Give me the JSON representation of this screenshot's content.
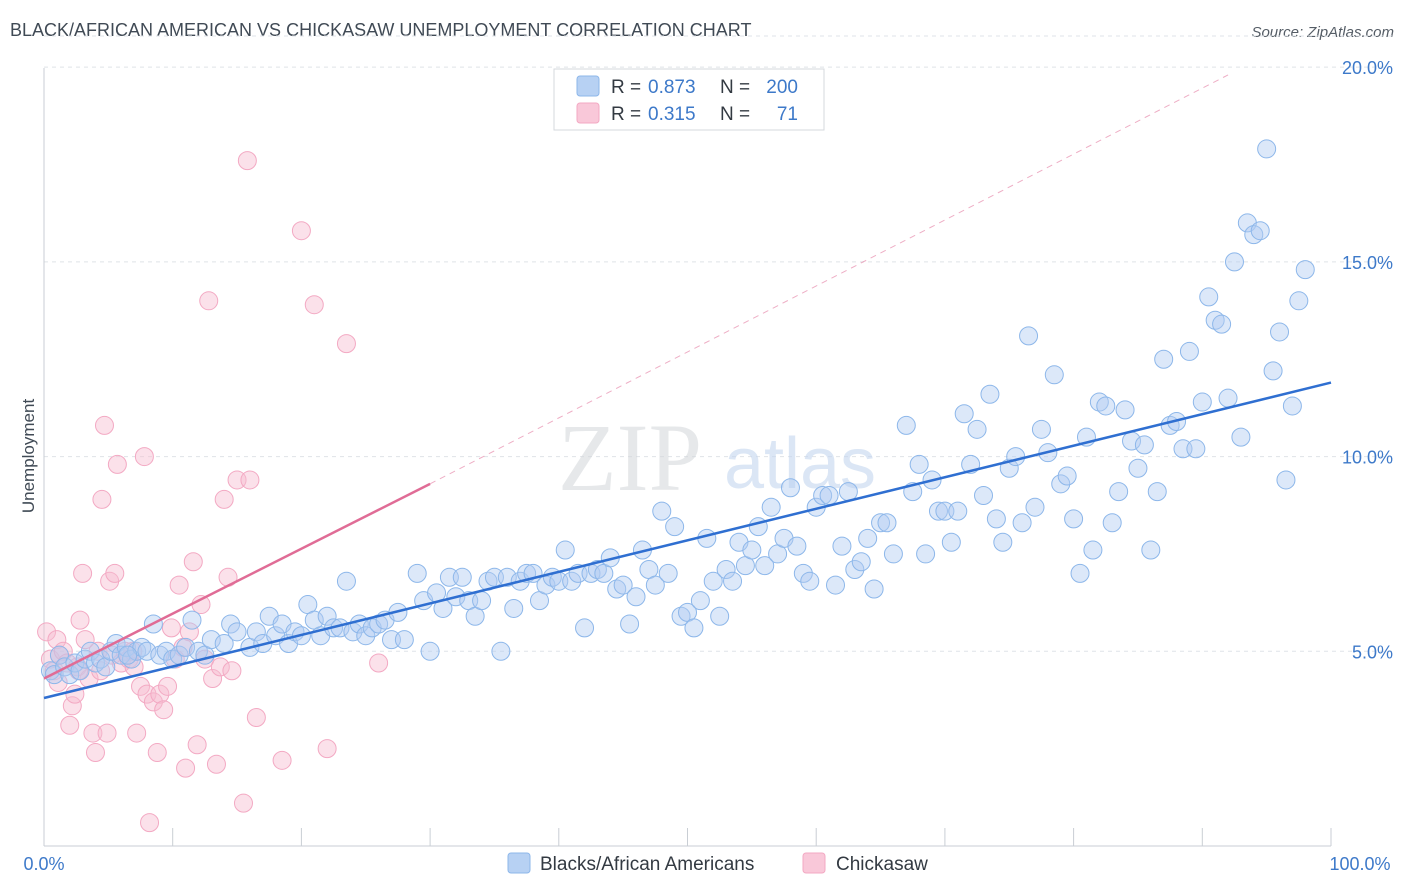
{
  "header": {
    "title": "BLACK/AFRICAN AMERICAN VS CHICKASAW UNEMPLOYMENT CORRELATION CHART",
    "source": "Source: ZipAtlas.com"
  },
  "colors": {
    "blue": "#8db7ea",
    "blue_line": "#2f6fd1",
    "pink": "#f3a9c3",
    "pink_line": "#e06c96",
    "axis_label": "#3d79c9",
    "grid": "#dfe3e8"
  },
  "watermark": {
    "zip": "ZIP",
    "atlas": "atlas"
  },
  "chart_data": {
    "type": "scatter",
    "title": "BLACK/AFRICAN AMERICAN VS CHICKASAW UNEMPLOYMENT CORRELATION CHART",
    "xlabel": "",
    "ylabel": "Unemployment",
    "xlim": [
      0,
      100
    ],
    "ylim": [
      0,
      20.8
    ],
    "x_tick_labels": [
      "0.0%",
      "100.0%"
    ],
    "y_ticks": [
      5,
      10,
      15,
      20
    ],
    "y_tick_labels": [
      "5.0%",
      "10.0%",
      "15.0%",
      "20.0%"
    ],
    "grid": true,
    "legend_position": "top-center",
    "stats": [
      {
        "r_label": "R =",
        "r_value": "0.873",
        "n_label": "N =",
        "n_value": "200"
      },
      {
        "r_label": "R =",
        "r_value": "0.315",
        "n_label": "N =",
        "n_value": "71"
      }
    ],
    "series": [
      {
        "name": "Blacks/African Americans",
        "trend": {
          "x": [
            0,
            100
          ],
          "y": [
            3.8,
            11.9
          ]
        },
        "points": [
          [
            0.5,
            4.5
          ],
          [
            0.8,
            4.4
          ],
          [
            1.2,
            4.9
          ],
          [
            1.6,
            4.6
          ],
          [
            2.0,
            4.4
          ],
          [
            2.4,
            4.7
          ],
          [
            2.8,
            4.5
          ],
          [
            3.2,
            4.8
          ],
          [
            3.6,
            5.0
          ],
          [
            4.0,
            4.7
          ],
          [
            4.4,
            4.8
          ],
          [
            4.8,
            4.6
          ],
          [
            5.2,
            5.0
          ],
          [
            5.6,
            5.2
          ],
          [
            6.0,
            4.9
          ],
          [
            6.4,
            5.1
          ],
          [
            6.8,
            4.8
          ],
          [
            7.2,
            5.0
          ],
          [
            7.6,
            5.1
          ],
          [
            8.0,
            5.0
          ],
          [
            8.5,
            5.7
          ],
          [
            9.0,
            4.9
          ],
          [
            9.5,
            5.0
          ],
          [
            10.0,
            4.8
          ],
          [
            10.5,
            4.9
          ],
          [
            11.0,
            5.1
          ],
          [
            11.5,
            5.8
          ],
          [
            12.0,
            5.0
          ],
          [
            12.5,
            4.9
          ],
          [
            13.0,
            5.3
          ],
          [
            14.0,
            5.2
          ],
          [
            14.5,
            5.7
          ],
          [
            15.0,
            5.5
          ],
          [
            16.0,
            5.1
          ],
          [
            16.5,
            5.5
          ],
          [
            17.0,
            5.2
          ],
          [
            17.5,
            5.9
          ],
          [
            18.0,
            5.4
          ],
          [
            18.5,
            5.7
          ],
          [
            19.0,
            5.2
          ],
          [
            19.5,
            5.5
          ],
          [
            20.0,
            5.4
          ],
          [
            20.5,
            6.2
          ],
          [
            21.0,
            5.8
          ],
          [
            21.5,
            5.4
          ],
          [
            22.0,
            5.9
          ],
          [
            22.5,
            5.6
          ],
          [
            23.0,
            5.6
          ],
          [
            23.5,
            6.8
          ],
          [
            24.0,
            5.5
          ],
          [
            24.5,
            5.7
          ],
          [
            25.0,
            5.4
          ],
          [
            25.5,
            5.6
          ],
          [
            26.0,
            5.7
          ],
          [
            26.5,
            5.8
          ],
          [
            27.0,
            5.3
          ],
          [
            27.5,
            6.0
          ],
          [
            28.0,
            5.3
          ],
          [
            29.0,
            7.0
          ],
          [
            29.5,
            6.3
          ],
          [
            30.0,
            5.0
          ],
          [
            30.5,
            6.5
          ],
          [
            31.0,
            6.1
          ],
          [
            31.5,
            6.9
          ],
          [
            32.0,
            6.4
          ],
          [
            32.5,
            6.9
          ],
          [
            33.0,
            6.3
          ],
          [
            33.5,
            5.9
          ],
          [
            34.0,
            6.3
          ],
          [
            34.5,
            6.8
          ],
          [
            35.0,
            6.9
          ],
          [
            35.5,
            5.0
          ],
          [
            36.0,
            6.9
          ],
          [
            36.5,
            6.1
          ],
          [
            37.0,
            6.8
          ],
          [
            37.5,
            7.0
          ],
          [
            38.0,
            7.0
          ],
          [
            38.5,
            6.3
          ],
          [
            39.0,
            6.7
          ],
          [
            39.5,
            6.9
          ],
          [
            40.0,
            6.8
          ],
          [
            40.5,
            7.6
          ],
          [
            41.0,
            6.8
          ],
          [
            41.5,
            7.0
          ],
          [
            42.0,
            5.6
          ],
          [
            42.5,
            7.0
          ],
          [
            43.0,
            7.1
          ],
          [
            43.5,
            7.0
          ],
          [
            44.0,
            7.4
          ],
          [
            44.5,
            6.6
          ],
          [
            45.0,
            6.7
          ],
          [
            45.5,
            5.7
          ],
          [
            46.0,
            6.4
          ],
          [
            46.5,
            7.6
          ],
          [
            47.0,
            7.1
          ],
          [
            47.5,
            6.7
          ],
          [
            48.0,
            8.6
          ],
          [
            48.5,
            7.0
          ],
          [
            49.0,
            8.2
          ],
          [
            49.5,
            5.9
          ],
          [
            50.0,
            6.0
          ],
          [
            50.5,
            5.6
          ],
          [
            51.0,
            6.3
          ],
          [
            51.5,
            7.9
          ],
          [
            52.0,
            6.8
          ],
          [
            52.5,
            5.9
          ],
          [
            53.0,
            7.1
          ],
          [
            53.5,
            6.8
          ],
          [
            54.0,
            7.8
          ],
          [
            54.5,
            7.2
          ],
          [
            55.0,
            7.6
          ],
          [
            55.5,
            8.2
          ],
          [
            56.0,
            7.2
          ],
          [
            56.5,
            8.7
          ],
          [
            57.0,
            7.5
          ],
          [
            57.5,
            7.9
          ],
          [
            58.0,
            9.2
          ],
          [
            58.5,
            7.7
          ],
          [
            59.0,
            7.0
          ],
          [
            59.5,
            6.8
          ],
          [
            60.0,
            8.7
          ],
          [
            60.5,
            9.0
          ],
          [
            61.0,
            9.0
          ],
          [
            61.5,
            6.7
          ],
          [
            62.0,
            7.7
          ],
          [
            62.5,
            9.1
          ],
          [
            63.0,
            7.1
          ],
          [
            63.5,
            7.3
          ],
          [
            64.0,
            7.9
          ],
          [
            64.5,
            6.6
          ],
          [
            65.0,
            8.3
          ],
          [
            65.5,
            8.3
          ],
          [
            66.0,
            7.5
          ],
          [
            67.0,
            10.8
          ],
          [
            67.5,
            9.1
          ],
          [
            68.0,
            9.8
          ],
          [
            68.5,
            7.5
          ],
          [
            69.0,
            9.4
          ],
          [
            69.5,
            8.6
          ],
          [
            70.0,
            8.6
          ],
          [
            70.5,
            7.8
          ],
          [
            71.0,
            8.6
          ],
          [
            71.5,
            11.1
          ],
          [
            72.0,
            9.8
          ],
          [
            72.5,
            10.7
          ],
          [
            73.0,
            9.0
          ],
          [
            73.5,
            11.6
          ],
          [
            74.0,
            8.4
          ],
          [
            74.5,
            7.8
          ],
          [
            75.0,
            9.7
          ],
          [
            75.5,
            10.0
          ],
          [
            76.0,
            8.3
          ],
          [
            76.5,
            13.1
          ],
          [
            77.0,
            8.7
          ],
          [
            77.5,
            10.7
          ],
          [
            78.0,
            10.1
          ],
          [
            78.5,
            12.1
          ],
          [
            79.0,
            9.3
          ],
          [
            79.5,
            9.5
          ],
          [
            80.0,
            8.4
          ],
          [
            80.5,
            7.0
          ],
          [
            81.0,
            10.5
          ],
          [
            81.5,
            7.6
          ],
          [
            82.0,
            11.4
          ],
          [
            82.5,
            11.3
          ],
          [
            83.0,
            8.3
          ],
          [
            83.5,
            9.1
          ],
          [
            84.0,
            11.2
          ],
          [
            84.5,
            10.4
          ],
          [
            85.0,
            9.7
          ],
          [
            85.5,
            10.3
          ],
          [
            86.0,
            7.6
          ],
          [
            86.5,
            9.1
          ],
          [
            87.0,
            12.5
          ],
          [
            87.5,
            10.8
          ],
          [
            88.0,
            10.9
          ],
          [
            88.5,
            10.2
          ],
          [
            89.0,
            12.7
          ],
          [
            89.5,
            10.2
          ],
          [
            90.0,
            11.4
          ],
          [
            90.5,
            14.1
          ],
          [
            91.0,
            13.5
          ],
          [
            91.5,
            13.4
          ],
          [
            92.0,
            11.5
          ],
          [
            92.5,
            15.0
          ],
          [
            93.0,
            10.5
          ],
          [
            93.5,
            16.0
          ],
          [
            94.0,
            15.7
          ],
          [
            94.5,
            15.8
          ],
          [
            95.0,
            17.9
          ],
          [
            95.5,
            12.2
          ],
          [
            96.0,
            13.2
          ],
          [
            96.5,
            9.4
          ],
          [
            97.0,
            11.3
          ],
          [
            97.5,
            14.0
          ],
          [
            98.0,
            14.8
          ],
          [
            6.5,
            4.9
          ]
        ]
      },
      {
        "name": "Chickasaw",
        "trend": {
          "x": [
            0,
            30
          ],
          "y": [
            4.3,
            9.3
          ]
        },
        "trend_extension": {
          "x": [
            30,
            92
          ],
          "y": [
            9.3,
            19.8
          ]
        },
        "points": [
          [
            0.2,
            5.5
          ],
          [
            0.5,
            4.8
          ],
          [
            0.8,
            4.5
          ],
          [
            1.0,
            5.3
          ],
          [
            1.2,
            4.9
          ],
          [
            1.5,
            5.0
          ],
          [
            1.8,
            4.7
          ],
          [
            2.0,
            3.1
          ],
          [
            2.2,
            3.6
          ],
          [
            2.4,
            3.9
          ],
          [
            2.6,
            4.6
          ],
          [
            2.8,
            5.8
          ],
          [
            3.0,
            7.0
          ],
          [
            3.2,
            5.3
          ],
          [
            3.5,
            4.3
          ],
          [
            3.8,
            2.9
          ],
          [
            4.0,
            2.4
          ],
          [
            4.2,
            5.0
          ],
          [
            4.5,
            8.9
          ],
          [
            4.7,
            10.8
          ],
          [
            4.9,
            2.9
          ],
          [
            5.1,
            6.8
          ],
          [
            5.3,
            4.9
          ],
          [
            5.5,
            7.0
          ],
          [
            5.7,
            9.8
          ],
          [
            6.0,
            4.7
          ],
          [
            6.3,
            5.0
          ],
          [
            6.6,
            4.8
          ],
          [
            6.9,
            5.0
          ],
          [
            7.2,
            2.9
          ],
          [
            7.5,
            4.1
          ],
          [
            7.8,
            10.0
          ],
          [
            8.0,
            3.9
          ],
          [
            8.2,
            0.6
          ],
          [
            8.5,
            3.7
          ],
          [
            8.8,
            2.4
          ],
          [
            9.0,
            3.9
          ],
          [
            9.3,
            3.5
          ],
          [
            9.6,
            4.1
          ],
          [
            9.9,
            5.6
          ],
          [
            10.2,
            4.8
          ],
          [
            10.5,
            6.7
          ],
          [
            10.8,
            5.1
          ],
          [
            11.0,
            2.0
          ],
          [
            11.3,
            5.5
          ],
          [
            11.6,
            7.3
          ],
          [
            11.9,
            2.6
          ],
          [
            12.2,
            6.2
          ],
          [
            12.5,
            4.8
          ],
          [
            12.8,
            14.0
          ],
          [
            13.1,
            4.3
          ],
          [
            13.4,
            2.1
          ],
          [
            13.7,
            4.6
          ],
          [
            14.0,
            8.9
          ],
          [
            14.3,
            6.9
          ],
          [
            14.6,
            4.5
          ],
          [
            15.0,
            9.4
          ],
          [
            15.5,
            1.1
          ],
          [
            15.8,
            17.6
          ],
          [
            16.0,
            9.4
          ],
          [
            16.5,
            3.3
          ],
          [
            18.5,
            2.2
          ],
          [
            20.0,
            15.8
          ],
          [
            21.0,
            13.9
          ],
          [
            22.0,
            2.5
          ],
          [
            23.5,
            12.9
          ],
          [
            26.0,
            4.7
          ],
          [
            1.1,
            4.2
          ],
          [
            2.7,
            4.5
          ],
          [
            4.4,
            4.5
          ],
          [
            7.0,
            4.6
          ]
        ]
      }
    ]
  }
}
